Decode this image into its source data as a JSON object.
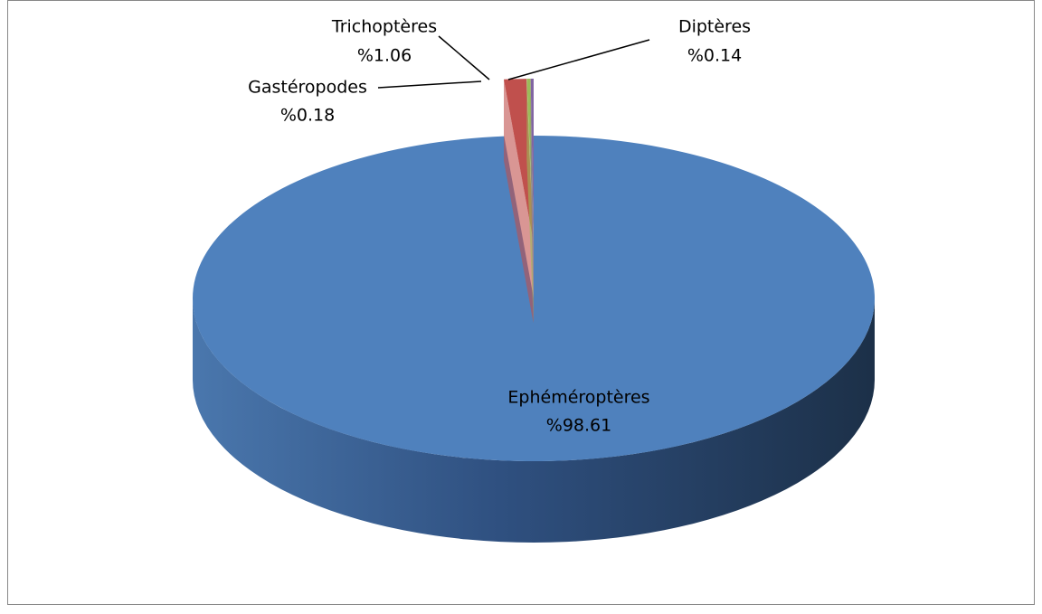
{
  "chart_data": {
    "type": "pie3d",
    "categories": [
      "Ephéméroptères",
      "Trichoptères",
      "Gastéropodes",
      "Diptères"
    ],
    "values": [
      98.61,
      1.06,
      0.18,
      0.14
    ],
    "value_labels": [
      "%98.61",
      "%1.06",
      "%0.18",
      "%0.14"
    ],
    "colors": [
      "#4f81bd",
      "#c0504d",
      "#9bbb59",
      "#8064a2"
    ]
  }
}
